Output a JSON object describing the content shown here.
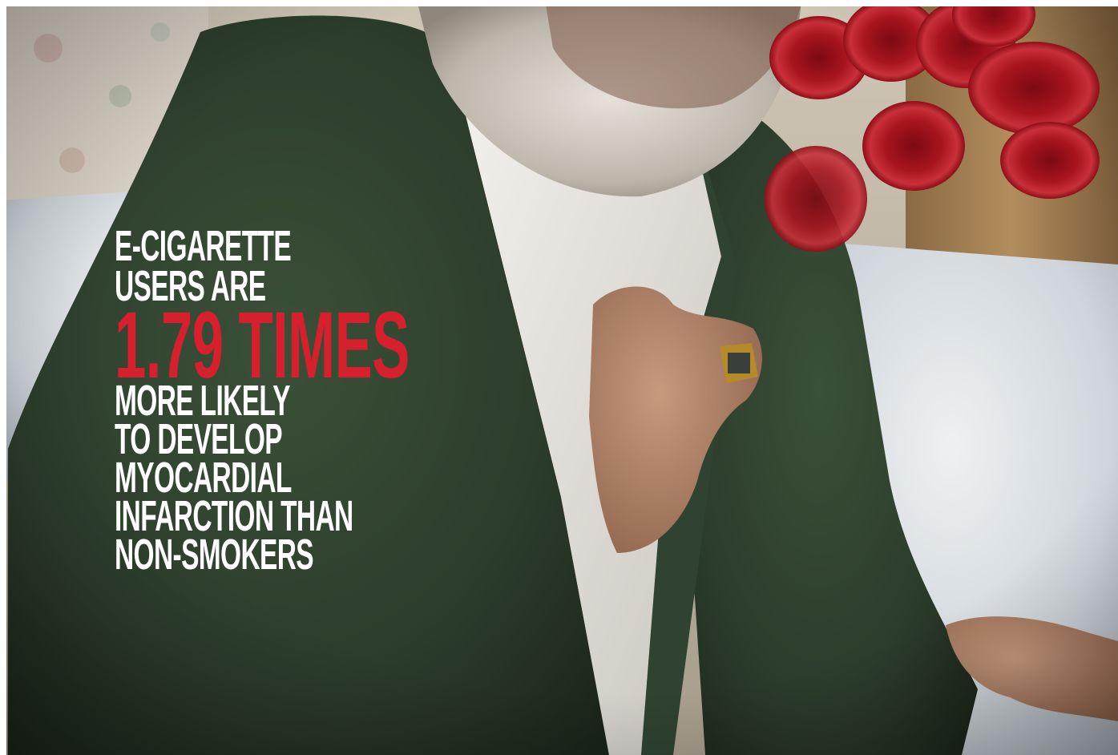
{
  "image": {
    "headline_lines": [
      "E-CIGARETTE",
      "USERS ARE"
    ],
    "highlight": "1.79 TIMES",
    "body_lines": [
      "MORE LIKELY",
      "TO DEVELOP",
      "MYOCARDIAL",
      "INFARCTION THAN",
      "NON-SMOKERS"
    ],
    "colors": {
      "highlight": "#d6202e",
      "text": "#ffffff",
      "cardigan": "#2f4330",
      "blood_cell": "#b3141d"
    },
    "icons": [
      "red-blood-cell-icon"
    ]
  }
}
